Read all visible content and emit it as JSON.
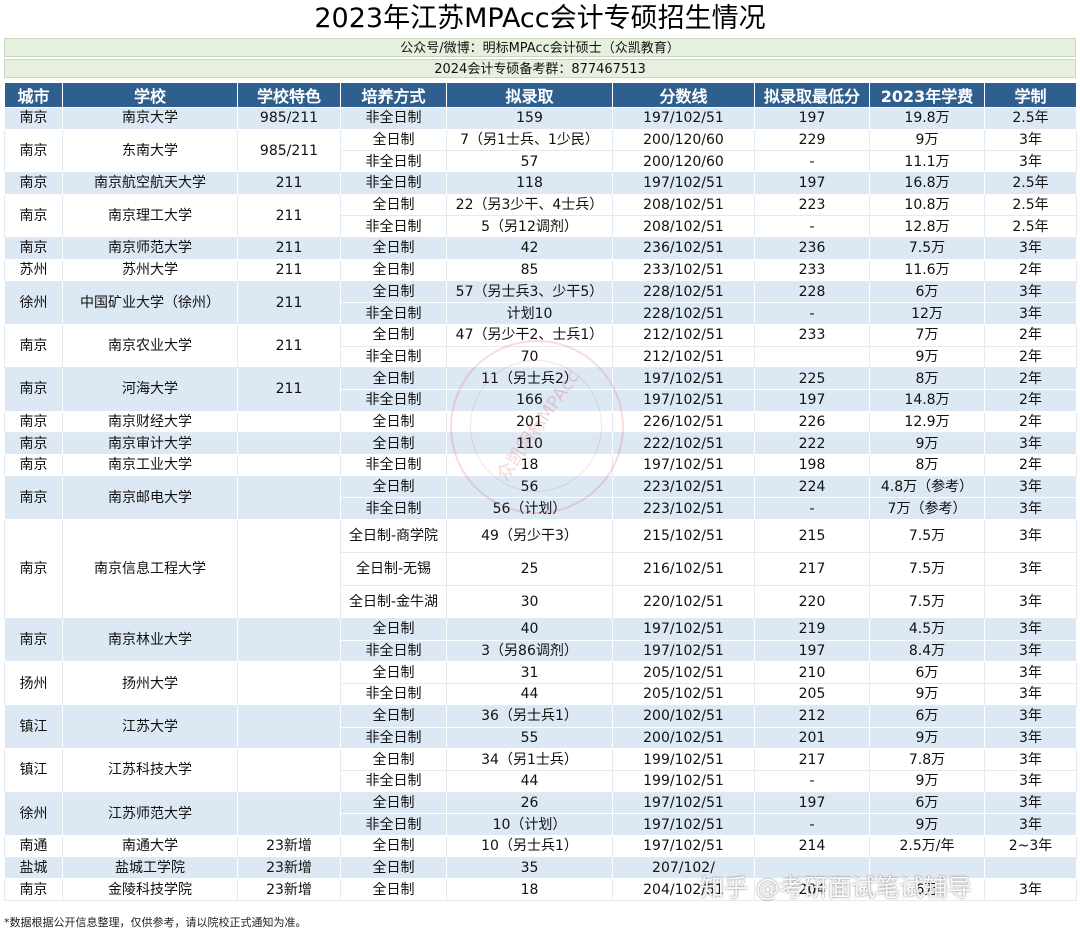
{
  "title": "2023年江苏MPAcc会计专硕招生情况",
  "subtitle1": "公众号/微博：明标MPAcc会计硕士（众凯教育）",
  "subtitle2": "2024会计专硕备考群：877467513",
  "headers": [
    "城市",
    "学校",
    "学校特色",
    "培养方式",
    "拟录取",
    "分数线",
    "拟录取最低分",
    "2023年学费",
    "学制"
  ],
  "schools": [
    {
      "city": "南京",
      "name": "南京大学",
      "feature": "985/211",
      "rows": [
        {
          "mode": "非全日制",
          "admit": "159",
          "score": "197/102/51",
          "min": "197",
          "fee": "19.8万",
          "years": "2.5年"
        }
      ]
    },
    {
      "city": "南京",
      "name": "东南大学",
      "feature": "985/211",
      "rows": [
        {
          "mode": "全日制",
          "admit": "7（另1士兵、1少民）",
          "score": "200/120/60",
          "min": "229",
          "fee": "9万",
          "years": "3年"
        },
        {
          "mode": "非全日制",
          "admit": "57",
          "score": "200/120/60",
          "min": "-",
          "fee": "11.1万",
          "years": "3年"
        }
      ]
    },
    {
      "city": "南京",
      "name": "南京航空航天大学",
      "feature": "211",
      "rows": [
        {
          "mode": "非全日制",
          "admit": "118",
          "score": "197/102/51",
          "min": "197",
          "fee": "16.8万",
          "years": "2.5年"
        }
      ]
    },
    {
      "city": "南京",
      "name": "南京理工大学",
      "feature": "211",
      "rows": [
        {
          "mode": "全日制",
          "admit": "22（另3少干、4士兵）",
          "score": "208/102/51",
          "min": "223",
          "fee": "10.8万",
          "years": "2.5年"
        },
        {
          "mode": "非全日制",
          "admit": "5（另12调剂）",
          "score": "208/102/51",
          "min": "-",
          "fee": "12.8万",
          "years": "2.5年"
        }
      ]
    },
    {
      "city": "南京",
      "name": "南京师范大学",
      "feature": "211",
      "rows": [
        {
          "mode": "全日制",
          "admit": "42",
          "score": "236/102/51",
          "min": "236",
          "fee": "7.5万",
          "years": "3年"
        }
      ]
    },
    {
      "city": "苏州",
      "name": "苏州大学",
      "feature": "211",
      "rows": [
        {
          "mode": "全日制",
          "admit": "85",
          "score": "233/102/51",
          "min": "233",
          "fee": "11.6万",
          "years": "2年"
        }
      ]
    },
    {
      "city": "徐州",
      "name": "中国矿业大学（徐州）",
      "feature": "211",
      "rows": [
        {
          "mode": "全日制",
          "admit": "57（另士兵3、少干5）",
          "score": "228/102/51",
          "min": "228",
          "fee": "6万",
          "years": "3年"
        },
        {
          "mode": "非全日制",
          "admit": "计划10",
          "score": "228/102/51",
          "min": "-",
          "fee": "12万",
          "years": "3年"
        }
      ]
    },
    {
      "city": "南京",
      "name": "南京农业大学",
      "feature": "211",
      "rows": [
        {
          "mode": "全日制",
          "admit": "47（另少干2、士兵1）",
          "score": "212/102/51",
          "min": "233",
          "fee": "7万",
          "years": "2年"
        },
        {
          "mode": "非全日制",
          "admit": "70",
          "score": "212/102/51",
          "min": "",
          "fee": "9万",
          "years": "2年"
        }
      ]
    },
    {
      "city": "南京",
      "name": "河海大学",
      "feature": "211",
      "rows": [
        {
          "mode": "全日制",
          "admit": "11（另士兵2）",
          "score": "197/102/51",
          "min": "225",
          "fee": "8万",
          "years": "2年"
        },
        {
          "mode": "非全日制",
          "admit": "166",
          "score": "197/102/51",
          "min": "197",
          "fee": "14.8万",
          "years": "2年"
        }
      ]
    },
    {
      "city": "南京",
      "name": "南京财经大学",
      "feature": "",
      "rows": [
        {
          "mode": "全日制",
          "admit": "201",
          "score": "226/102/51",
          "min": "226",
          "fee": "12.9万",
          "years": "2年"
        }
      ]
    },
    {
      "city": "南京",
      "name": "南京审计大学",
      "feature": "",
      "rows": [
        {
          "mode": "全日制",
          "admit": "110",
          "score": "222/102/51",
          "min": "222",
          "fee": "9万",
          "years": "3年"
        }
      ]
    },
    {
      "city": "南京",
      "name": "南京工业大学",
      "feature": "",
      "rows": [
        {
          "mode": "非全日制",
          "admit": "18",
          "score": "197/102/51",
          "min": "198",
          "fee": "8万",
          "years": "2年"
        }
      ]
    },
    {
      "city": "南京",
      "name": "南京邮电大学",
      "feature": "",
      "rows": [
        {
          "mode": "全日制",
          "admit": "56",
          "score": "223/102/51",
          "min": "224",
          "fee": "4.8万（参考）",
          "years": "3年"
        },
        {
          "mode": "非全日制",
          "admit": "56（计划）",
          "score": "223/102/51",
          "min": "-",
          "fee": "7万（参考）",
          "years": "3年"
        }
      ]
    },
    {
      "city": "南京",
      "name": "南京信息工程大学",
      "feature": "",
      "tall": true,
      "rows": [
        {
          "mode": "全日制-商学院",
          "admit": "49（另少干3）",
          "score": "215/102/51",
          "min": "215",
          "fee": "7.5万",
          "years": "3年"
        },
        {
          "mode": "全日制-无锡",
          "admit": "25",
          "score": "216/102/51",
          "min": "217",
          "fee": "7.5万",
          "years": "3年"
        },
        {
          "mode": "全日制-金牛湖",
          "admit": "30",
          "score": "220/102/51",
          "min": "220",
          "fee": "7.5万",
          "years": "3年"
        }
      ]
    },
    {
      "city": "南京",
      "name": "南京林业大学",
      "feature": "",
      "rows": [
        {
          "mode": "全日制",
          "admit": "40",
          "score": "197/102/51",
          "min": "219",
          "fee": "4.5万",
          "years": "3年"
        },
        {
          "mode": "非全日制",
          "admit": "3（另86调剂）",
          "score": "197/102/51",
          "min": "197",
          "fee": "8.4万",
          "years": "3年"
        }
      ]
    },
    {
      "city": "扬州",
      "name": "扬州大学",
      "feature": "",
      "rows": [
        {
          "mode": "全日制",
          "admit": "31",
          "score": "205/102/51",
          "min": "210",
          "fee": "6万",
          "years": "3年"
        },
        {
          "mode": "非全日制",
          "admit": "44",
          "score": "205/102/51",
          "min": "205",
          "fee": "9万",
          "years": "3年"
        }
      ]
    },
    {
      "city": "镇江",
      "name": "江苏大学",
      "feature": "",
      "rows": [
        {
          "mode": "全日制",
          "admit": "36（另士兵1）",
          "score": "200/102/51",
          "min": "212",
          "fee": "6万",
          "years": "3年"
        },
        {
          "mode": "非全日制",
          "admit": "55",
          "score": "200/102/51",
          "min": "201",
          "fee": "9万",
          "years": "3年"
        }
      ]
    },
    {
      "city": "镇江",
      "name": "江苏科技大学",
      "feature": "",
      "rows": [
        {
          "mode": "全日制",
          "admit": "34（另1士兵）",
          "score": "199/102/51",
          "min": "217",
          "fee": "7.8万",
          "years": "3年"
        },
        {
          "mode": "非全日制",
          "admit": "44",
          "score": "199/102/51",
          "min": "-",
          "fee": "9万",
          "years": "3年"
        }
      ]
    },
    {
      "city": "徐州",
      "name": "江苏师范大学",
      "feature": "",
      "rows": [
        {
          "mode": "全日制",
          "admit": "26",
          "score": "197/102/51",
          "min": "197",
          "fee": "6万",
          "years": "3年"
        },
        {
          "mode": "非全日制",
          "admit": "10（计划）",
          "score": "197/102/51",
          "min": "-",
          "fee": "9万",
          "years": "3年"
        }
      ]
    },
    {
      "city": "南通",
      "name": "南通大学",
      "feature": "23新增",
      "rows": [
        {
          "mode": "全日制",
          "admit": "10（另士兵1）",
          "score": "197/102/51",
          "min": "214",
          "fee": "2.5万/年",
          "years": "2~3年"
        }
      ]
    },
    {
      "city": "盐城",
      "name": "盐城工学院",
      "feature": "23新增",
      "rows": [
        {
          "mode": "全日制",
          "admit": "35",
          "score": "207/102/",
          "min": "",
          "fee": "",
          "years": ""
        }
      ]
    },
    {
      "city": "南京",
      "name": "金陵科技学院",
      "feature": "23新增",
      "rows": [
        {
          "mode": "全日制",
          "admit": "18",
          "score": "204/102/51",
          "min": "204",
          "fee": "6万",
          "years": "3年"
        }
      ]
    }
  ],
  "footnote": "*数据根据公开信息整理，仅供参考，请以院校正式通知为准。",
  "stamp_text": "众凯明标MPAcc",
  "watermark": "知乎 @考研面试笔试辅导"
}
